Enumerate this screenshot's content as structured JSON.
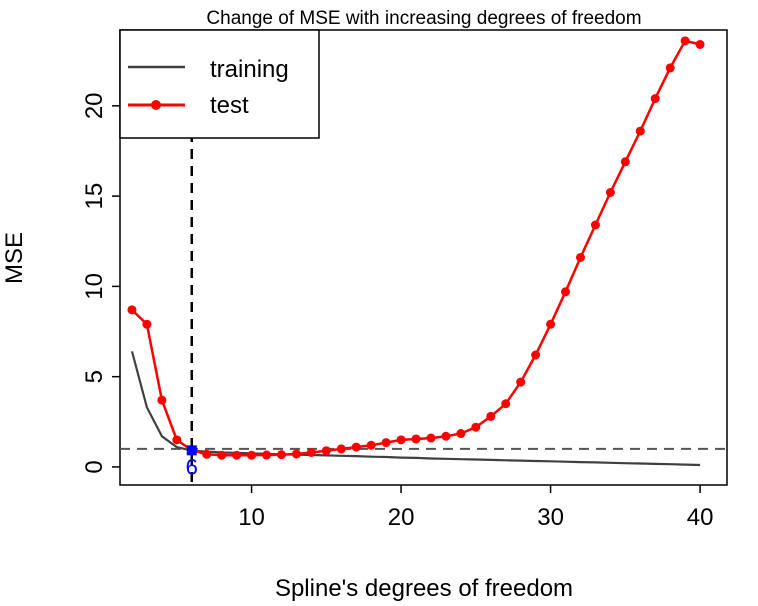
{
  "chart_data": {
    "type": "line",
    "title": "Change of MSE with increasing degrees of freedom",
    "xlabel": "Spline's degrees of freedom",
    "ylabel": "MSE",
    "xlim": [
      1.2,
      41.8
    ],
    "ylim": [
      -1.0,
      24.2
    ],
    "x_ticks": [
      10,
      20,
      30,
      40
    ],
    "y_ticks": [
      0,
      5,
      10,
      15,
      20
    ],
    "grid": false,
    "legend_position": "top-left",
    "series": [
      {
        "name": "training",
        "color": "#404040",
        "marker": "none",
        "x": [
          2,
          3,
          4,
          5,
          6,
          7,
          8,
          9,
          10,
          11,
          12,
          13,
          14,
          15,
          16,
          17,
          18,
          19,
          20,
          21,
          22,
          23,
          24,
          25,
          26,
          27,
          28,
          29,
          30,
          31,
          32,
          33,
          34,
          35,
          36,
          37,
          38,
          39,
          40
        ],
        "values": [
          6.4,
          3.3,
          1.7,
          1.1,
          0.9,
          0.85,
          0.8,
          0.78,
          0.75,
          0.72,
          0.7,
          0.68,
          0.66,
          0.64,
          0.62,
          0.6,
          0.57,
          0.55,
          0.52,
          0.5,
          0.47,
          0.45,
          0.43,
          0.41,
          0.39,
          0.37,
          0.35,
          0.33,
          0.31,
          0.29,
          0.27,
          0.25,
          0.23,
          0.21,
          0.19,
          0.17,
          0.15,
          0.13,
          0.11
        ]
      },
      {
        "name": "test",
        "color": "#ff0000",
        "marker": "circle",
        "x": [
          2,
          3,
          4,
          5,
          6,
          7,
          8,
          9,
          10,
          11,
          12,
          13,
          14,
          15,
          16,
          17,
          18,
          19,
          20,
          21,
          22,
          23,
          24,
          25,
          26,
          27,
          28,
          29,
          30,
          31,
          32,
          33,
          34,
          35,
          36,
          37,
          38,
          39,
          40
        ],
        "values": [
          8.7,
          7.9,
          3.7,
          1.5,
          0.92,
          0.7,
          0.65,
          0.65,
          0.65,
          0.66,
          0.68,
          0.72,
          0.8,
          0.9,
          1.0,
          1.1,
          1.2,
          1.35,
          1.5,
          1.55,
          1.6,
          1.7,
          1.85,
          2.2,
          2.8,
          3.5,
          4.7,
          6.2,
          7.9,
          9.7,
          11.6,
          13.4,
          15.2,
          16.9,
          18.6,
          20.4,
          22.1,
          23.6,
          23.4
        ]
      }
    ],
    "reference_lines": [
      {
        "orientation": "horizontal",
        "value": 1.0,
        "style": "dashed",
        "color": "#555555"
      },
      {
        "orientation": "vertical",
        "value": 6,
        "style": "dashed",
        "color": "#000000"
      }
    ],
    "annotations": [
      {
        "text": "6",
        "x": 6,
        "y": 0.92,
        "color": "#0000ff",
        "marker": "square"
      }
    ]
  }
}
